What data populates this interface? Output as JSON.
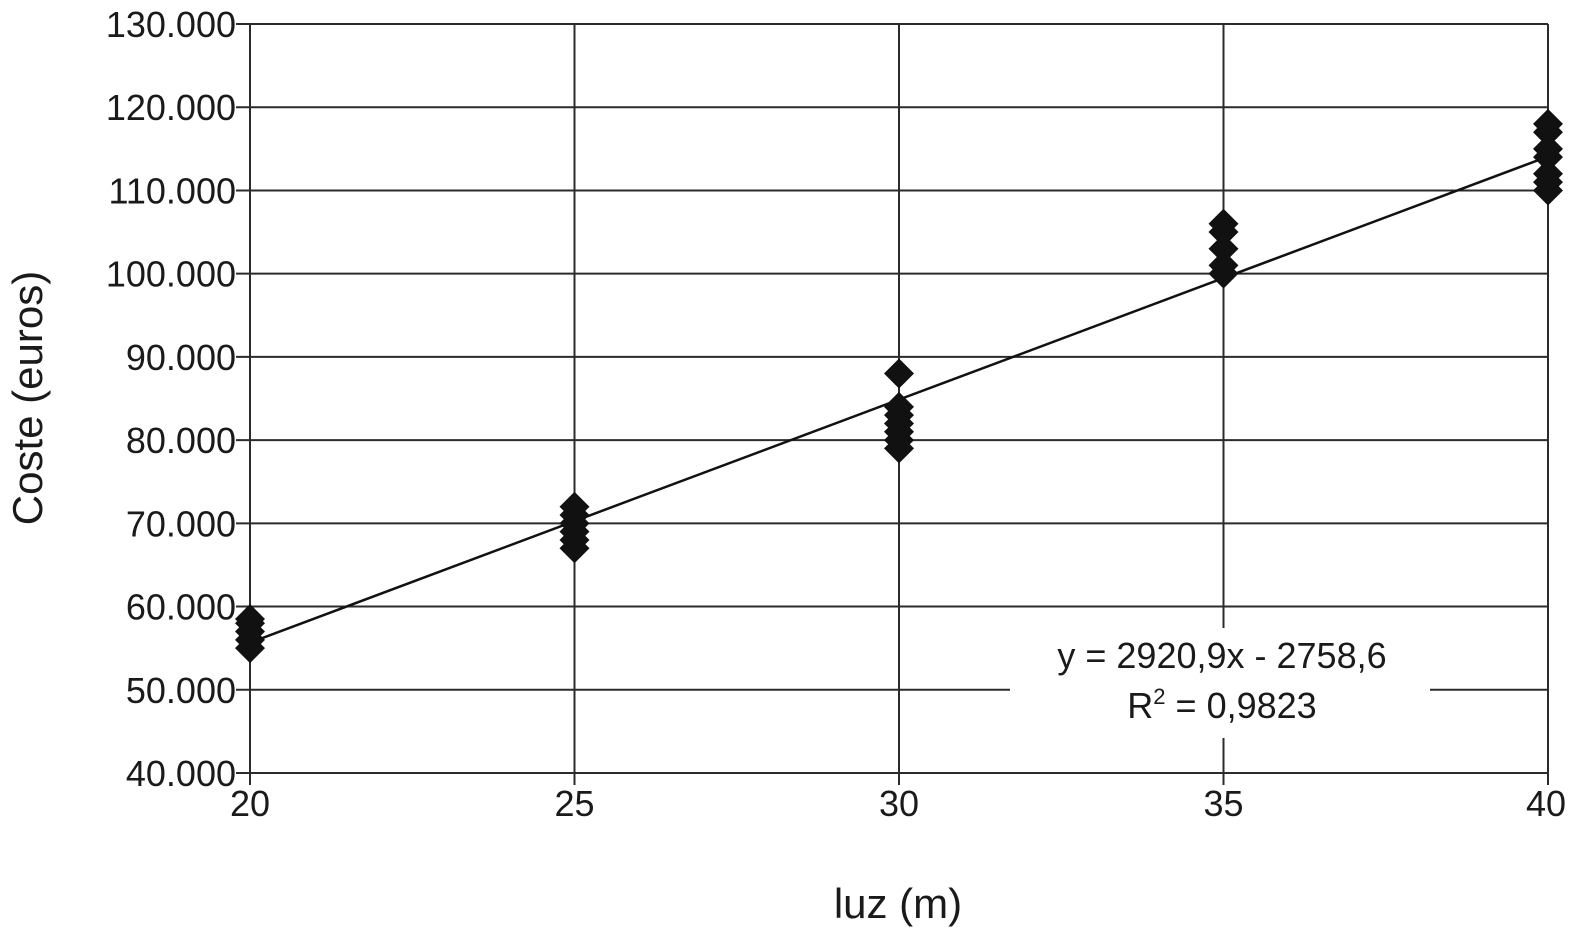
{
  "chart_data": {
    "type": "scatter",
    "title": "",
    "xlabel": "luz (m)",
    "ylabel": "Coste (euros)",
    "xlim": [
      20,
      40
    ],
    "ylim": [
      40000,
      130000
    ],
    "x_ticks": [
      20,
      25,
      30,
      35,
      40
    ],
    "x_tick_labels": [
      "20",
      "25",
      "30",
      "35",
      "40"
    ],
    "y_ticks": [
      40000,
      50000,
      60000,
      70000,
      80000,
      90000,
      100000,
      110000,
      120000,
      130000
    ],
    "y_tick_labels": [
      "40.000",
      "50.000",
      "60.000",
      "70.000",
      "80.000",
      "90.000",
      "100.000",
      "110.000",
      "120.000",
      "130.000"
    ],
    "grid": true,
    "marker": "diamond",
    "marker_color": "#111111",
    "points": [
      {
        "x": 20,
        "y": 55000
      },
      {
        "x": 20,
        "y": 56000
      },
      {
        "x": 20,
        "y": 57000
      },
      {
        "x": 20,
        "y": 58000
      },
      {
        "x": 20,
        "y": 58500
      },
      {
        "x": 25,
        "y": 67000
      },
      {
        "x": 25,
        "y": 68000
      },
      {
        "x": 25,
        "y": 69000
      },
      {
        "x": 25,
        "y": 70000
      },
      {
        "x": 25,
        "y": 71000
      },
      {
        "x": 25,
        "y": 72000
      },
      {
        "x": 30,
        "y": 79000
      },
      {
        "x": 30,
        "y": 80000
      },
      {
        "x": 30,
        "y": 81000
      },
      {
        "x": 30,
        "y": 82000
      },
      {
        "x": 30,
        "y": 83000
      },
      {
        "x": 30,
        "y": 84000
      },
      {
        "x": 30,
        "y": 88000
      },
      {
        "x": 35,
        "y": 100000
      },
      {
        "x": 35,
        "y": 101000
      },
      {
        "x": 35,
        "y": 103000
      },
      {
        "x": 35,
        "y": 105000
      },
      {
        "x": 35,
        "y": 106000
      },
      {
        "x": 40,
        "y": 110000
      },
      {
        "x": 40,
        "y": 111000
      },
      {
        "x": 40,
        "y": 112000
      },
      {
        "x": 40,
        "y": 114000
      },
      {
        "x": 40,
        "y": 115000
      },
      {
        "x": 40,
        "y": 117000
      },
      {
        "x": 40,
        "y": 118000
      }
    ],
    "trendline": {
      "slope": 2920.9,
      "intercept": -2758.6,
      "x_range": [
        20,
        40
      ],
      "equation_label": "y = 2920,9x - 2758,6",
      "r2_prefix": "R",
      "r2_exponent": "2",
      "r2_value": " = 0,9823"
    }
  }
}
